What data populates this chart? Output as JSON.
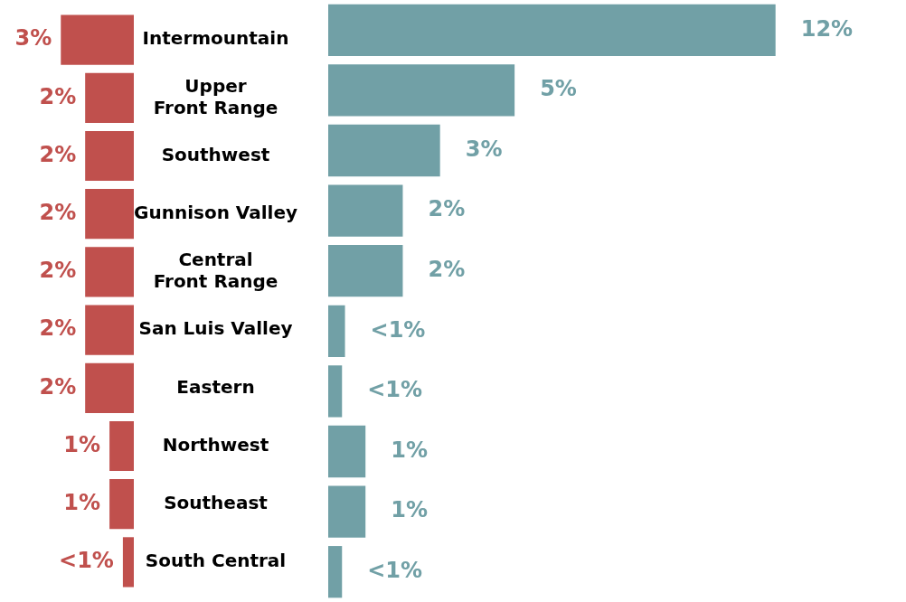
{
  "chart_data": [
    {
      "type": "bar",
      "orientation": "horizontal",
      "categories": [
        "Intermountain",
        "Upper\nFront Range",
        "Southwest",
        "Gunnison Valley",
        "Central\nFront Range",
        "San Luis Valley",
        "Eastern",
        "Northwest",
        "Southeast",
        "South Central"
      ],
      "xlim": [
        5.5,
        0
      ],
      "tick_labels": "y",
      "legend": false,
      "series": [
        {
          "color": "#c0504d",
          "values": [
            3,
            2,
            2,
            2,
            2,
            2,
            2,
            1,
            1,
            0.45
          ],
          "value_labels": [
            "3%",
            "2%",
            "2%",
            "2%",
            "2%",
            "2%",
            "2%",
            "1%",
            "1%",
            "<1%"
          ]
        }
      ]
    },
    {
      "type": "bar",
      "orientation": "horizontal",
      "categories": [
        null,
        null,
        null,
        null,
        null,
        null,
        null,
        null,
        null,
        null
      ],
      "xlim": [
        0,
        15.5
      ],
      "tick_labels": false,
      "legend": false,
      "series": [
        {
          "color": "#71a0a6",
          "values": [
            12,
            5,
            3,
            2,
            2,
            0.45,
            0.37,
            1,
            1,
            0.37
          ],
          "value_labels": [
            "12%",
            "5%",
            "3%",
            "2%",
            "2%",
            "<1%",
            "<1%",
            "1%",
            "1%",
            "<1%"
          ]
        }
      ]
    }
  ]
}
